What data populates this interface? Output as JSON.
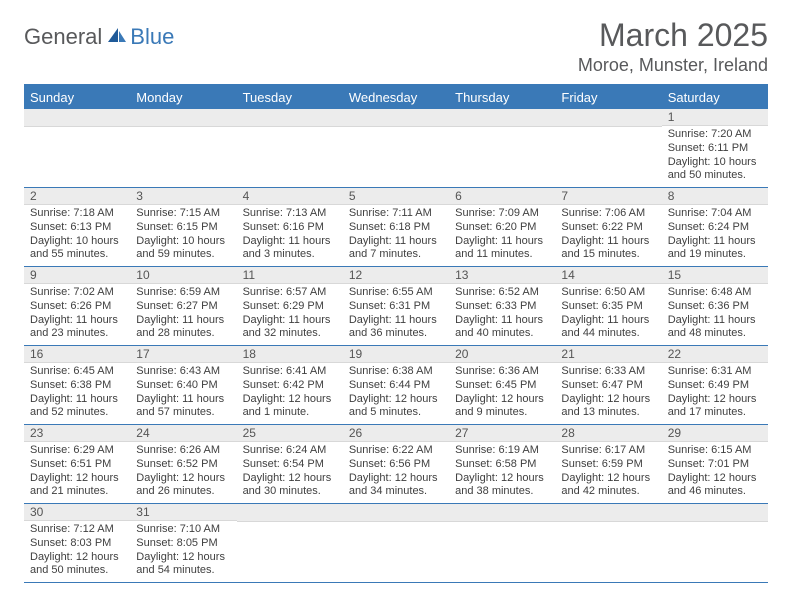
{
  "logo": {
    "text1": "General",
    "text2": "Blue"
  },
  "title": "March 2025",
  "location": "Moroe, Munster, Ireland",
  "colors": {
    "header_bg": "#3a79b7",
    "header_text": "#ffffff",
    "daynum_bg": "#ececec",
    "border": "#3a79b7",
    "text": "#3f3f3f",
    "title": "#58595b"
  },
  "day_headers": [
    "Sunday",
    "Monday",
    "Tuesday",
    "Wednesday",
    "Thursday",
    "Friday",
    "Saturday"
  ],
  "weeks": [
    [
      {
        "n": "",
        "sr": "",
        "ss": "",
        "dl": ""
      },
      {
        "n": "",
        "sr": "",
        "ss": "",
        "dl": ""
      },
      {
        "n": "",
        "sr": "",
        "ss": "",
        "dl": ""
      },
      {
        "n": "",
        "sr": "",
        "ss": "",
        "dl": ""
      },
      {
        "n": "",
        "sr": "",
        "ss": "",
        "dl": ""
      },
      {
        "n": "",
        "sr": "",
        "ss": "",
        "dl": ""
      },
      {
        "n": "1",
        "sr": "Sunrise: 7:20 AM",
        "ss": "Sunset: 6:11 PM",
        "dl": "Daylight: 10 hours and 50 minutes."
      }
    ],
    [
      {
        "n": "2",
        "sr": "Sunrise: 7:18 AM",
        "ss": "Sunset: 6:13 PM",
        "dl": "Daylight: 10 hours and 55 minutes."
      },
      {
        "n": "3",
        "sr": "Sunrise: 7:15 AM",
        "ss": "Sunset: 6:15 PM",
        "dl": "Daylight: 10 hours and 59 minutes."
      },
      {
        "n": "4",
        "sr": "Sunrise: 7:13 AM",
        "ss": "Sunset: 6:16 PM",
        "dl": "Daylight: 11 hours and 3 minutes."
      },
      {
        "n": "5",
        "sr": "Sunrise: 7:11 AM",
        "ss": "Sunset: 6:18 PM",
        "dl": "Daylight: 11 hours and 7 minutes."
      },
      {
        "n": "6",
        "sr": "Sunrise: 7:09 AM",
        "ss": "Sunset: 6:20 PM",
        "dl": "Daylight: 11 hours and 11 minutes."
      },
      {
        "n": "7",
        "sr": "Sunrise: 7:06 AM",
        "ss": "Sunset: 6:22 PM",
        "dl": "Daylight: 11 hours and 15 minutes."
      },
      {
        "n": "8",
        "sr": "Sunrise: 7:04 AM",
        "ss": "Sunset: 6:24 PM",
        "dl": "Daylight: 11 hours and 19 minutes."
      }
    ],
    [
      {
        "n": "9",
        "sr": "Sunrise: 7:02 AM",
        "ss": "Sunset: 6:26 PM",
        "dl": "Daylight: 11 hours and 23 minutes."
      },
      {
        "n": "10",
        "sr": "Sunrise: 6:59 AM",
        "ss": "Sunset: 6:27 PM",
        "dl": "Daylight: 11 hours and 28 minutes."
      },
      {
        "n": "11",
        "sr": "Sunrise: 6:57 AM",
        "ss": "Sunset: 6:29 PM",
        "dl": "Daylight: 11 hours and 32 minutes."
      },
      {
        "n": "12",
        "sr": "Sunrise: 6:55 AM",
        "ss": "Sunset: 6:31 PM",
        "dl": "Daylight: 11 hours and 36 minutes."
      },
      {
        "n": "13",
        "sr": "Sunrise: 6:52 AM",
        "ss": "Sunset: 6:33 PM",
        "dl": "Daylight: 11 hours and 40 minutes."
      },
      {
        "n": "14",
        "sr": "Sunrise: 6:50 AM",
        "ss": "Sunset: 6:35 PM",
        "dl": "Daylight: 11 hours and 44 minutes."
      },
      {
        "n": "15",
        "sr": "Sunrise: 6:48 AM",
        "ss": "Sunset: 6:36 PM",
        "dl": "Daylight: 11 hours and 48 minutes."
      }
    ],
    [
      {
        "n": "16",
        "sr": "Sunrise: 6:45 AM",
        "ss": "Sunset: 6:38 PM",
        "dl": "Daylight: 11 hours and 52 minutes."
      },
      {
        "n": "17",
        "sr": "Sunrise: 6:43 AM",
        "ss": "Sunset: 6:40 PM",
        "dl": "Daylight: 11 hours and 57 minutes."
      },
      {
        "n": "18",
        "sr": "Sunrise: 6:41 AM",
        "ss": "Sunset: 6:42 PM",
        "dl": "Daylight: 12 hours and 1 minute."
      },
      {
        "n": "19",
        "sr": "Sunrise: 6:38 AM",
        "ss": "Sunset: 6:44 PM",
        "dl": "Daylight: 12 hours and 5 minutes."
      },
      {
        "n": "20",
        "sr": "Sunrise: 6:36 AM",
        "ss": "Sunset: 6:45 PM",
        "dl": "Daylight: 12 hours and 9 minutes."
      },
      {
        "n": "21",
        "sr": "Sunrise: 6:33 AM",
        "ss": "Sunset: 6:47 PM",
        "dl": "Daylight: 12 hours and 13 minutes."
      },
      {
        "n": "22",
        "sr": "Sunrise: 6:31 AM",
        "ss": "Sunset: 6:49 PM",
        "dl": "Daylight: 12 hours and 17 minutes."
      }
    ],
    [
      {
        "n": "23",
        "sr": "Sunrise: 6:29 AM",
        "ss": "Sunset: 6:51 PM",
        "dl": "Daylight: 12 hours and 21 minutes."
      },
      {
        "n": "24",
        "sr": "Sunrise: 6:26 AM",
        "ss": "Sunset: 6:52 PM",
        "dl": "Daylight: 12 hours and 26 minutes."
      },
      {
        "n": "25",
        "sr": "Sunrise: 6:24 AM",
        "ss": "Sunset: 6:54 PM",
        "dl": "Daylight: 12 hours and 30 minutes."
      },
      {
        "n": "26",
        "sr": "Sunrise: 6:22 AM",
        "ss": "Sunset: 6:56 PM",
        "dl": "Daylight: 12 hours and 34 minutes."
      },
      {
        "n": "27",
        "sr": "Sunrise: 6:19 AM",
        "ss": "Sunset: 6:58 PM",
        "dl": "Daylight: 12 hours and 38 minutes."
      },
      {
        "n": "28",
        "sr": "Sunrise: 6:17 AM",
        "ss": "Sunset: 6:59 PM",
        "dl": "Daylight: 12 hours and 42 minutes."
      },
      {
        "n": "29",
        "sr": "Sunrise: 6:15 AM",
        "ss": "Sunset: 7:01 PM",
        "dl": "Daylight: 12 hours and 46 minutes."
      }
    ],
    [
      {
        "n": "30",
        "sr": "Sunrise: 7:12 AM",
        "ss": "Sunset: 8:03 PM",
        "dl": "Daylight: 12 hours and 50 minutes."
      },
      {
        "n": "31",
        "sr": "Sunrise: 7:10 AM",
        "ss": "Sunset: 8:05 PM",
        "dl": "Daylight: 12 hours and 54 minutes."
      },
      {
        "n": "",
        "sr": "",
        "ss": "",
        "dl": ""
      },
      {
        "n": "",
        "sr": "",
        "ss": "",
        "dl": ""
      },
      {
        "n": "",
        "sr": "",
        "ss": "",
        "dl": ""
      },
      {
        "n": "",
        "sr": "",
        "ss": "",
        "dl": ""
      },
      {
        "n": "",
        "sr": "",
        "ss": "",
        "dl": ""
      }
    ]
  ]
}
